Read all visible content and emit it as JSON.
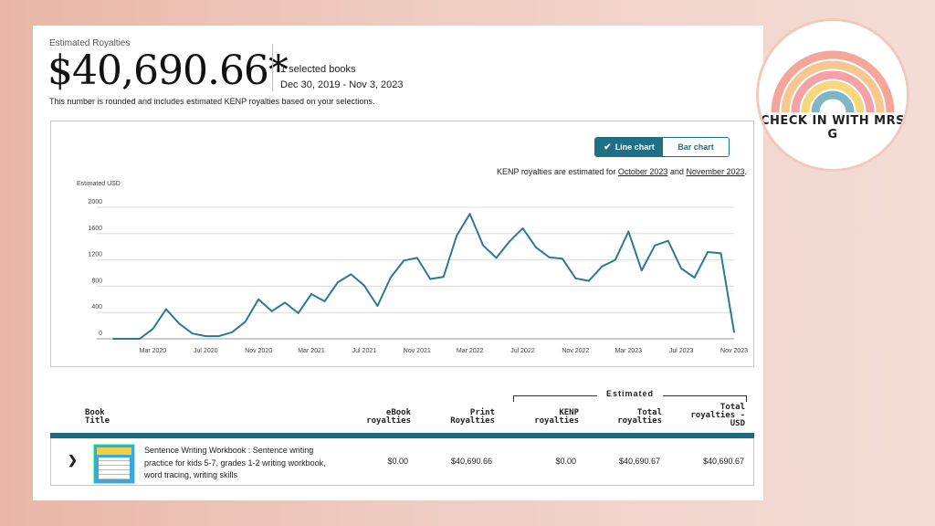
{
  "summary": {
    "label": "Estimated Royalties",
    "amount": "$40,690.66*",
    "selected_books": "1 selected books",
    "date_range": "Dec 30, 2019 - Nov 3, 2023",
    "note": "This number is rounded and includes estimated KENP royalties based on your selections."
  },
  "chart_controls": {
    "line_label": "Line chart",
    "bar_label": "Bar chart",
    "selected": "Line chart",
    "kenp_prefix": "KENP royalties are estimated for ",
    "kenp_month1": "October 2023",
    "kenp_and": " and ",
    "kenp_month2": "November 2023",
    "kenp_suffix": "."
  },
  "chart_data": {
    "type": "line",
    "ylabel": "Estimated USD",
    "ylim": [
      0,
      2000
    ],
    "yticks": [
      "0",
      "400",
      "800",
      "1200",
      "1600",
      "2000"
    ],
    "xtick_labels": [
      "Mar 2020",
      "Jul 2020",
      "Nov 2020",
      "Mar 2021",
      "Jul 2021",
      "Nov 2021",
      "Mar 2022",
      "Jul 2022",
      "Nov 2022",
      "Mar 2023",
      "Jul 2023",
      "Nov 2023"
    ],
    "grid": true,
    "color": "#2e7896",
    "x": [
      "2019-12",
      "2020-01",
      "2020-02",
      "2020-03",
      "2020-04",
      "2020-05",
      "2020-06",
      "2020-07",
      "2020-08",
      "2020-09",
      "2020-10",
      "2020-11",
      "2020-12",
      "2021-01",
      "2021-02",
      "2021-03",
      "2021-04",
      "2021-05",
      "2021-06",
      "2021-07",
      "2021-08",
      "2021-09",
      "2021-10",
      "2021-11",
      "2021-12",
      "2022-01",
      "2022-02",
      "2022-03",
      "2022-04",
      "2022-05",
      "2022-06",
      "2022-07",
      "2022-08",
      "2022-09",
      "2022-10",
      "2022-11",
      "2022-12",
      "2023-01",
      "2023-02",
      "2023-03",
      "2023-04",
      "2023-05",
      "2023-06",
      "2023-07",
      "2023-08",
      "2023-09",
      "2023-10",
      "2023-11"
    ],
    "values": [
      0,
      0,
      0,
      150,
      450,
      230,
      80,
      40,
      40,
      100,
      260,
      600,
      420,
      550,
      390,
      680,
      570,
      860,
      980,
      810,
      500,
      930,
      1190,
      1230,
      910,
      940,
      1570,
      1900,
      1420,
      1230,
      1480,
      1680,
      1390,
      1240,
      1220,
      920,
      880,
      1100,
      1200,
      1630,
      1040,
      1420,
      1490,
      1070,
      930,
      1320,
      1300,
      100
    ]
  },
  "table": {
    "estimated_label": "Estimated",
    "columns": {
      "book_title": [
        "Book",
        "Title"
      ],
      "ebook": [
        "eBook",
        "royalties"
      ],
      "print": [
        "Print",
        "Royalties"
      ],
      "kenp": [
        "KENP",
        "royalties"
      ],
      "total": [
        "Total",
        "royalties"
      ],
      "total_usd": [
        "Total",
        "royalties -",
        "USD"
      ]
    },
    "rows": [
      {
        "title": "Sentence Writing Workbook : Sentence writing practice for kids 5-7, grades 1-2 writing workbook, word tracing, writing skills",
        "ebook": "$0.00",
        "print": "$40,690.66",
        "kenp": "$0.00",
        "total": "$40,690.67",
        "total_usd": "$40,690.67"
      }
    ]
  },
  "logo": {
    "text": "CHECK IN WITH MRS G"
  },
  "colors": {
    "accent": "#1f6f85",
    "line": "#2e7896"
  }
}
